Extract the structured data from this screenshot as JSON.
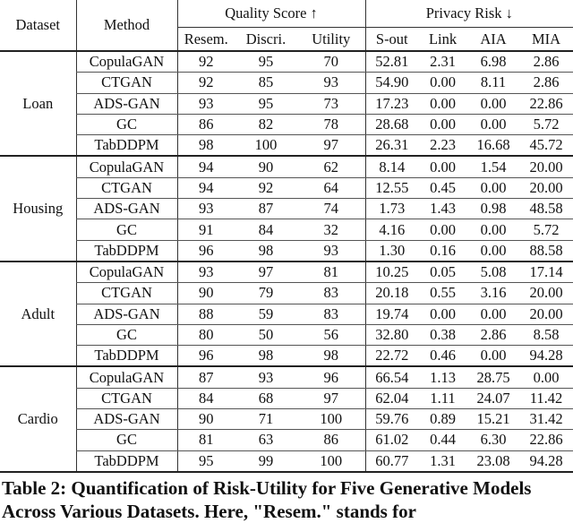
{
  "table": {
    "header": {
      "dataset": "Dataset",
      "method": "Method",
      "quality": "Quality Score ↑",
      "privacy": "Privacy Risk ↓",
      "columns": [
        "Resem.",
        "Discri.",
        "Utility",
        "S-out",
        "Link",
        "AIA",
        "MIA"
      ]
    },
    "groups": [
      {
        "dataset": "Loan",
        "rows": [
          [
            "CopulaGAN",
            "92",
            "95",
            "70",
            "52.81",
            "2.31",
            "6.98",
            "2.86"
          ],
          [
            "CTGAN",
            "92",
            "85",
            "93",
            "54.90",
            "0.00",
            "8.11",
            "2.86"
          ],
          [
            "ADS-GAN",
            "93",
            "95",
            "73",
            "17.23",
            "0.00",
            "0.00",
            "22.86"
          ],
          [
            "GC",
            "86",
            "82",
            "78",
            "28.68",
            "0.00",
            "0.00",
            "5.72"
          ],
          [
            "TabDDPM",
            "98",
            "100",
            "97",
            "26.31",
            "2.23",
            "16.68",
            "45.72"
          ]
        ]
      },
      {
        "dataset": "Housing",
        "rows": [
          [
            "CopulaGAN",
            "94",
            "90",
            "62",
            "8.14",
            "0.00",
            "1.54",
            "20.00"
          ],
          [
            "CTGAN",
            "94",
            "92",
            "64",
            "12.55",
            "0.45",
            "0.00",
            "20.00"
          ],
          [
            "ADS-GAN",
            "93",
            "87",
            "74",
            "1.73",
            "1.43",
            "0.98",
            "48.58"
          ],
          [
            "GC",
            "91",
            "84",
            "32",
            "4.16",
            "0.00",
            "0.00",
            "5.72"
          ],
          [
            "TabDDPM",
            "96",
            "98",
            "93",
            "1.30",
            "0.16",
            "0.00",
            "88.58"
          ]
        ]
      },
      {
        "dataset": "Adult",
        "rows": [
          [
            "CopulaGAN",
            "93",
            "97",
            "81",
            "10.25",
            "0.05",
            "5.08",
            "17.14"
          ],
          [
            "CTGAN",
            "90",
            "79",
            "83",
            "20.18",
            "0.55",
            "3.16",
            "20.00"
          ],
          [
            "ADS-GAN",
            "88",
            "59",
            "83",
            "19.74",
            "0.00",
            "0.00",
            "20.00"
          ],
          [
            "GC",
            "80",
            "50",
            "56",
            "32.80",
            "0.38",
            "2.86",
            "8.58"
          ],
          [
            "TabDDPM",
            "96",
            "98",
            "98",
            "22.72",
            "0.46",
            "0.00",
            "94.28"
          ]
        ]
      },
      {
        "dataset": "Cardio",
        "rows": [
          [
            "CopulaGAN",
            "87",
            "93",
            "96",
            "66.54",
            "1.13",
            "28.75",
            "0.00"
          ],
          [
            "CTGAN",
            "84",
            "68",
            "97",
            "62.04",
            "1.11",
            "24.07",
            "11.42"
          ],
          [
            "ADS-GAN",
            "90",
            "71",
            "100",
            "59.76",
            "0.89",
            "15.21",
            "31.42"
          ],
          [
            "GC",
            "81",
            "63",
            "86",
            "61.02",
            "0.44",
            "6.30",
            "22.86"
          ],
          [
            "TabDDPM",
            "95",
            "99",
            "100",
            "60.77",
            "1.31",
            "23.08",
            "94.28"
          ]
        ]
      }
    ]
  },
  "caption": "Table 2: Quantification of Risk-Utility for Five Generative Models Across Various Datasets. Here, \"Resem.\" stands for"
}
